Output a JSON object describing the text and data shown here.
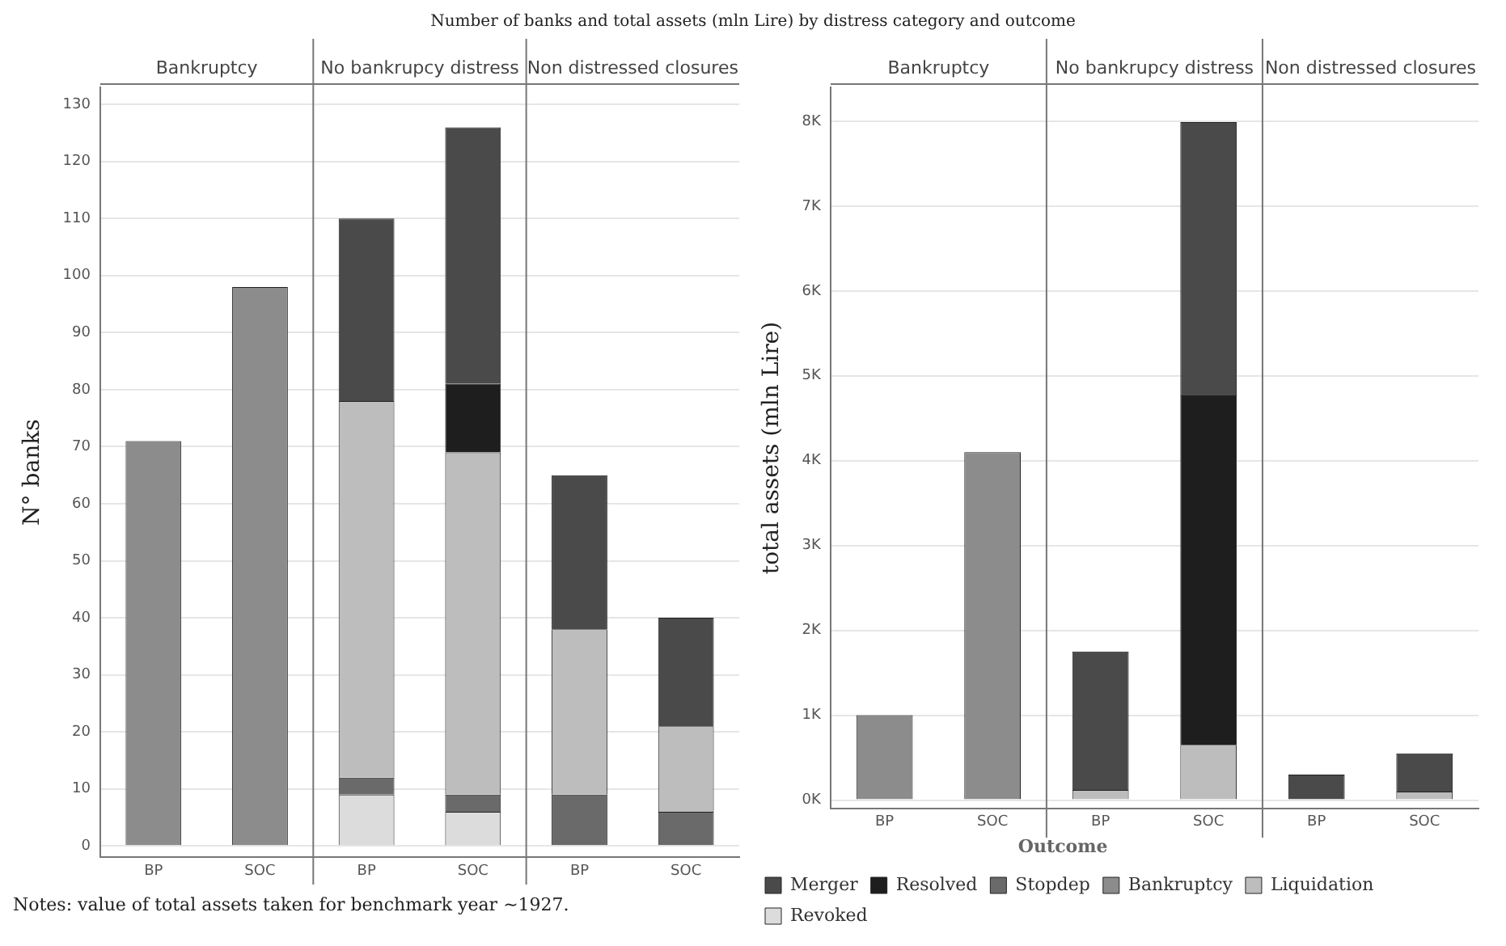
{
  "chart_data": [
    {
      "type": "bar",
      "title": "Number of banks and total assets (mln Lire) by distress category and outcome",
      "ylabel": "N° banks",
      "categories": [
        "BP",
        "SOC",
        "BP",
        "SOC",
        "BP",
        "SOC"
      ],
      "stacked": true,
      "grid": "y",
      "legend": false,
      "annotations": [
        "Bankruptcy",
        "No bankrupcy distress",
        "Non distressed closures",
        "Notes: value of total assets taken for benchmark year ~1927."
      ],
      "ylim": [
        -2,
        133
      ],
      "yticks": [
        0,
        10,
        20,
        30,
        40,
        50,
        60,
        70,
        80,
        90,
        100,
        110,
        120,
        130
      ],
      "series": [
        {
          "color": "#8c8c8c",
          "values": [
            71,
            98,
            null,
            null,
            null,
            null
          ]
        },
        {
          "color": "#dcdcdc",
          "values": [
            null,
            null,
            9,
            6,
            null,
            null
          ]
        },
        {
          "color": "#6a6a6a",
          "values": [
            null,
            null,
            3,
            3,
            9,
            6
          ]
        },
        {
          "color": "#bdbdbd",
          "values": [
            null,
            null,
            66,
            60,
            29,
            15
          ]
        },
        {
          "color": "#1e1e1e",
          "values": [
            null,
            null,
            null,
            12,
            null,
            null
          ]
        },
        {
          "color": "#4a4a4a",
          "values": [
            null,
            null,
            32,
            45,
            27,
            19
          ]
        }
      ]
    },
    {
      "type": "bar",
      "ylabel": "total assets (mln Lire)",
      "categories": [
        "BP",
        "SOC",
        "BP",
        "SOC",
        "BP",
        "SOC"
      ],
      "stacked": true,
      "grid": "y",
      "legend": "bottom",
      "legend_title": "Outcome",
      "annotations": [
        "Bankruptcy",
        "No bankrupcy distress",
        "Non distressed closures"
      ],
      "ylim": [
        -100,
        8400
      ],
      "yticks": [
        {
          "value": 0,
          "label": "0K"
        },
        {
          "value": 1000,
          "label": "1K"
        },
        {
          "value": 2000,
          "label": "2K"
        },
        {
          "value": 3000,
          "label": "3K"
        },
        {
          "value": 4000,
          "label": "4K"
        },
        {
          "value": 5000,
          "label": "5K"
        },
        {
          "value": 6000,
          "label": "6K"
        },
        {
          "value": 7000,
          "label": "7K"
        },
        {
          "value": 8000,
          "label": "8K"
        }
      ],
      "series": [
        {
          "name": "Revoked",
          "color": "#dcdcdc",
          "values": [
            null,
            null,
            null,
            null,
            null,
            null
          ]
        },
        {
          "name": "Liquidation",
          "color": "#bdbdbd",
          "values": [
            null,
            null,
            120,
            650,
            null,
            100
          ]
        },
        {
          "name": "Bankruptcy",
          "color": "#8c8c8c",
          "values": [
            1000,
            4100,
            null,
            null,
            null,
            null
          ]
        },
        {
          "name": "Stopdep",
          "color": "#6a6a6a",
          "values": [
            null,
            null,
            null,
            null,
            null,
            null
          ]
        },
        {
          "name": "Resolved",
          "color": "#1e1e1e",
          "values": [
            null,
            null,
            null,
            4120,
            null,
            null
          ]
        },
        {
          "name": "Merger",
          "color": "#4a4a4a",
          "values": [
            null,
            null,
            1630,
            3220,
            300,
            450
          ]
        }
      ]
    }
  ]
}
